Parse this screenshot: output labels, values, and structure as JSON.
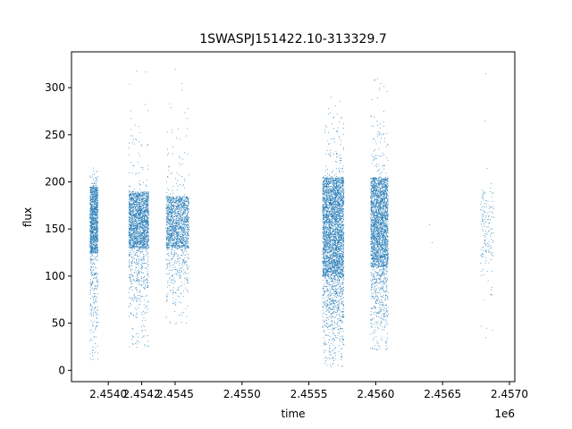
{
  "chart_data": {
    "type": "scatter",
    "title": "1SWASPJ151422.10-313329.7",
    "xlabel": "time",
    "ylabel": "flux",
    "x_offset_label": "1e6",
    "xlim": [
      2453725,
      2457040
    ],
    "ylim": [
      -12,
      338
    ],
    "x_ticks": [
      2453900,
      2454100,
      2454300,
      2454500,
      2454700,
      2454900,
      2455100,
      2455300,
      2455500,
      2455700
    ],
    "x_tick_labels": [
      "2.4540",
      "2.4542",
      "2.4545",
      "2.4550",
      "2.4555",
      "2.4560",
      "2.4565",
      "2.4570"
    ],
    "x_tick_values": [
      2454000,
      2454250,
      2454500,
      2455000,
      2455500,
      2456000,
      2456500,
      2457000
    ],
    "y_ticks": [
      0,
      50,
      100,
      150,
      200,
      250,
      300
    ],
    "y_tick_labels": [
      "0",
      "50",
      "100",
      "150",
      "200",
      "250",
      "300"
    ],
    "marker_color": "#1f77b4",
    "grid": false,
    "series": [
      {
        "season_clusters": [
          {
            "x_start": 2453860,
            "x_end": 2453920,
            "core": [
              125,
              195
            ],
            "min": 12,
            "max": 215,
            "density": 1400
          },
          {
            "x_start": 2454150,
            "x_end": 2454300,
            "core": [
              130,
              190
            ],
            "min": 25,
            "max": 318,
            "density": 2200
          },
          {
            "x_start": 2454430,
            "x_end": 2454600,
            "core": [
              130,
              185
            ],
            "min": 50,
            "max": 320,
            "density": 1700
          },
          {
            "x_start": 2455600,
            "x_end": 2455760,
            "core": [
              100,
              205
            ],
            "min": 4,
            "max": 290,
            "density": 3800
          },
          {
            "x_start": 2455960,
            "x_end": 2456090,
            "core": [
              110,
              205
            ],
            "min": 22,
            "max": 310,
            "density": 2800
          },
          {
            "x_start": 2456780,
            "x_end": 2456880,
            "core": [
              120,
              190
            ],
            "min": 35,
            "max": 315,
            "density": 160
          }
        ],
        "isolated_points": [
          {
            "x": 2456400,
            "y": 155
          },
          {
            "x": 2456420,
            "y": 136
          }
        ]
      }
    ]
  }
}
